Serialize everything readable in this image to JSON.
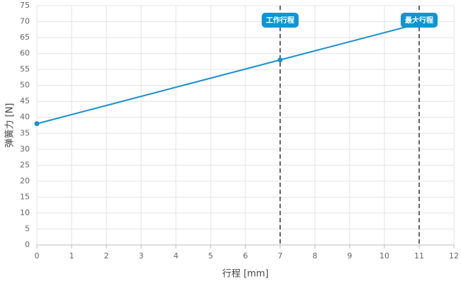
{
  "chart_data": {
    "type": "line",
    "x_label": "行程 [mm]",
    "y_label": "弹簧力 [N]",
    "x": [
      0,
      7,
      11
    ],
    "series": [
      {
        "name": "弹簧力",
        "color": "#1791d0",
        "values": [
          38,
          58,
          69.4
        ]
      }
    ],
    "xlim": [
      0,
      12
    ],
    "xticks": [
      0,
      1,
      2,
      3,
      4,
      5,
      6,
      7,
      8,
      9,
      10,
      11,
      12
    ],
    "ylim": [
      0,
      75
    ],
    "yticks": [
      0,
      5,
      10,
      15,
      20,
      25,
      30,
      35,
      40,
      45,
      50,
      55,
      60,
      65,
      70,
      75
    ],
    "grid": true,
    "annotations": [
      {
        "x": 7,
        "label": "工作行程"
      },
      {
        "x": 11,
        "label": "最大行程"
      }
    ]
  }
}
